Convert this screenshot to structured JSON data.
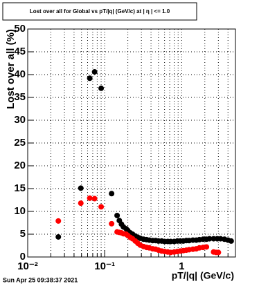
{
  "chart_data": {
    "type": "scatter",
    "title": "Lost over all for Global vs pT/|q| (GeV/c) at | η | <= 1.0",
    "x_label": "pT/|q| (GeV/c)",
    "y_label": "Lost over all (%)",
    "timestamp": "Sun Apr 25 09:38:37 2021",
    "x_log": true,
    "grid": true,
    "xlim": [
      0.01,
      5
    ],
    "ylim": [
      0,
      50
    ],
    "xticks": [
      {
        "value": 0.01,
        "label": "10⁻²"
      },
      {
        "value": 0.1,
        "label": "10⁻¹"
      },
      1
    ],
    "xminor_ticks": [
      0.02,
      0.03,
      0.04,
      0.05,
      0.06,
      0.07,
      0.08,
      0.09,
      0.2,
      0.3,
      0.4,
      0.5,
      0.6,
      0.7,
      0.8,
      0.9,
      2,
      3,
      4
    ],
    "yticks": [
      0,
      5,
      10,
      15,
      20,
      25,
      30,
      35,
      40,
      45,
      50
    ],
    "series": [
      {
        "color": "#000000",
        "x": [
          0.025,
          0.049,
          0.064,
          0.074,
          0.09,
          0.123,
          0.145,
          0.155,
          0.165,
          0.175,
          0.19,
          0.2,
          0.215,
          0.23,
          0.25,
          0.27,
          0.29,
          0.32,
          0.35,
          0.38,
          0.42,
          0.46,
          0.5,
          0.55,
          0.6,
          0.66,
          0.72,
          0.8,
          0.88,
          0.96,
          1.05,
          1.15,
          1.25,
          1.4,
          1.55,
          1.7,
          1.9,
          2.1,
          2.3,
          2.6,
          2.9,
          3.2,
          3.6,
          4.0,
          4.4
        ],
        "values": [
          4.4,
          15.1,
          39.2,
          40.6,
          37.0,
          13.9,
          9.1,
          8.0,
          7.2,
          6.6,
          6.2,
          5.8,
          5.3,
          5.0,
          4.6,
          4.3,
          4.1,
          3.9,
          3.8,
          3.7,
          3.6,
          3.6,
          3.5,
          3.5,
          3.4,
          3.4,
          3.4,
          3.4,
          3.5,
          3.5,
          3.5,
          3.6,
          3.6,
          3.7,
          3.7,
          3.8,
          3.9,
          3.9,
          4.0,
          4.0,
          4.0,
          4.0,
          3.9,
          3.7,
          3.5
        ]
      },
      {
        "color": "#ff0000",
        "x": [
          0.025,
          0.049,
          0.064,
          0.074,
          0.09,
          0.123,
          0.145,
          0.155,
          0.165,
          0.175,
          0.19,
          0.2,
          0.215,
          0.23,
          0.25,
          0.27,
          0.29,
          0.32,
          0.35,
          0.38,
          0.42,
          0.46,
          0.5,
          0.55,
          0.6,
          0.66,
          0.72,
          0.8,
          0.88,
          0.96,
          1.05,
          1.15,
          1.25,
          1.4,
          1.55,
          1.7,
          1.9,
          2.1,
          2.6,
          2.8,
          3.0
        ],
        "values": [
          7.9,
          11.8,
          12.9,
          12.8,
          11.0,
          7.3,
          5.5,
          5.4,
          5.3,
          5.1,
          5.0,
          4.7,
          4.3,
          4.0,
          3.5,
          3.0,
          2.6,
          2.3,
          2.1,
          2.0,
          1.8,
          1.7,
          1.5,
          1.3,
          1.2,
          1.1,
          1.0,
          1.1,
          1.2,
          1.3,
          1.4,
          1.5,
          1.6,
          1.7,
          1.8,
          2.0,
          2.1,
          2.2,
          1.1,
          1.0,
          1.0
        ]
      }
    ]
  }
}
